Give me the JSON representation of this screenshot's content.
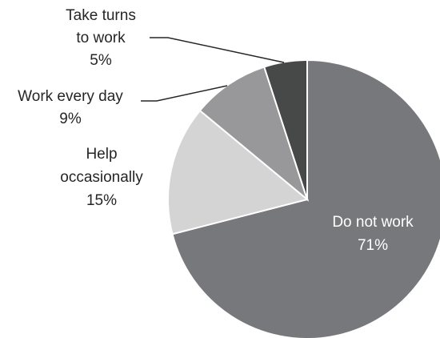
{
  "chart_data": {
    "type": "pie",
    "title": "",
    "slices": [
      {
        "label": "Do not work",
        "value": 71,
        "value_label": "71%",
        "color": "#77787b"
      },
      {
        "label": "Help occasionally",
        "value": 15,
        "value_label": "15%",
        "color": "#d4d4d4"
      },
      {
        "label": "Work every day",
        "value": 9,
        "value_label": "9%",
        "color": "#98989a"
      },
      {
        "label": "Take turns to work",
        "value": 5,
        "value_label": "5%",
        "color": "#474848"
      }
    ],
    "labels": {
      "do_not_work": {
        "lines": [
          "Do not work"
        ],
        "pct": "71%"
      },
      "help_occasionally": {
        "lines": [
          "Help",
          "occasionally"
        ],
        "pct": "15%"
      },
      "work_every_day": {
        "lines": [
          "Work every day"
        ],
        "pct": "9%"
      },
      "take_turns": {
        "lines": [
          "Take turns",
          "to work"
        ],
        "pct": "5%"
      }
    },
    "legend": "none"
  }
}
